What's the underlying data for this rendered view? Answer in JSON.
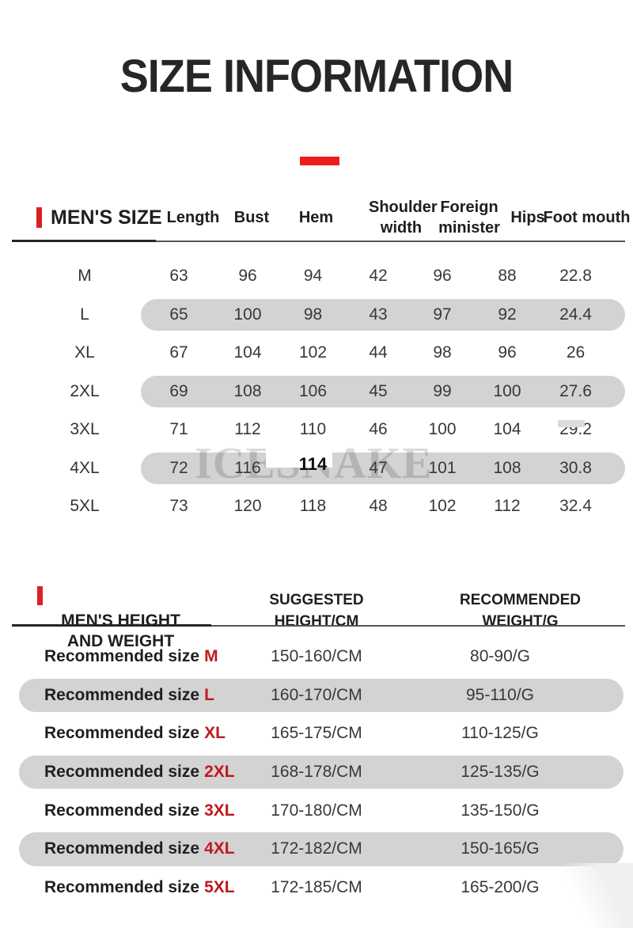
{
  "title": "SIZE INFORMATION",
  "accent_color": "#ee1c1c",
  "band_color": "#d3d3d3",
  "size_red_color": "#c0181f",
  "watermark": "ICESNAKE",
  "size_table": {
    "section_title": "MEN'S SIZE",
    "columns": [
      "Length",
      "Bust",
      "Hem",
      "Shoulder width",
      "Foreign minister",
      "Hips",
      "Foot mouth"
    ],
    "rows": [
      {
        "size": "M",
        "values": [
          "63",
          "96",
          "94",
          "42",
          "96",
          "88",
          "22.8"
        ]
      },
      {
        "size": "L",
        "values": [
          "65",
          "100",
          "98",
          "43",
          "97",
          "92",
          "24.4"
        ]
      },
      {
        "size": "XL",
        "values": [
          "67",
          "104",
          "102",
          "44",
          "98",
          "96",
          "26"
        ]
      },
      {
        "size": "2XL",
        "values": [
          "69",
          "108",
          "106",
          "45",
          "99",
          "100",
          "27.6"
        ]
      },
      {
        "size": "3XL",
        "values": [
          "71",
          "112",
          "110",
          "46",
          "100",
          "104",
          "29.2"
        ]
      },
      {
        "size": "4XL",
        "values": [
          "72",
          "116",
          "114",
          "47",
          "101",
          "108",
          "30.8"
        ]
      },
      {
        "size": "5XL",
        "values": [
          "73",
          "120",
          "118",
          "48",
          "102",
          "112",
          "32.4"
        ]
      }
    ]
  },
  "height_weight_table": {
    "section_title": "MEN'S HEIGHT\nAND WEIGHT",
    "col_height": "SUGGESTED\nHEIGHT/CM",
    "col_weight": "RECOMMENDED\nWEIGHT/G",
    "row_label_prefix": "Recommended size",
    "rows": [
      {
        "size": "M",
        "height": "150-160/CM",
        "weight": "80-90/G"
      },
      {
        "size": "L",
        "height": "160-170/CM",
        "weight": "95-110/G"
      },
      {
        "size": "XL",
        "height": "165-175/CM",
        "weight": "110-125/G"
      },
      {
        "size": "2XL",
        "height": "168-178/CM",
        "weight": "125-135/G"
      },
      {
        "size": "3XL",
        "height": "170-180/CM",
        "weight": "135-150/G"
      },
      {
        "size": "4XL",
        "height": "172-182/CM",
        "weight": "150-165/G"
      },
      {
        "size": "5XL",
        "height": "172-185/CM",
        "weight": "165-200/G"
      }
    ]
  }
}
